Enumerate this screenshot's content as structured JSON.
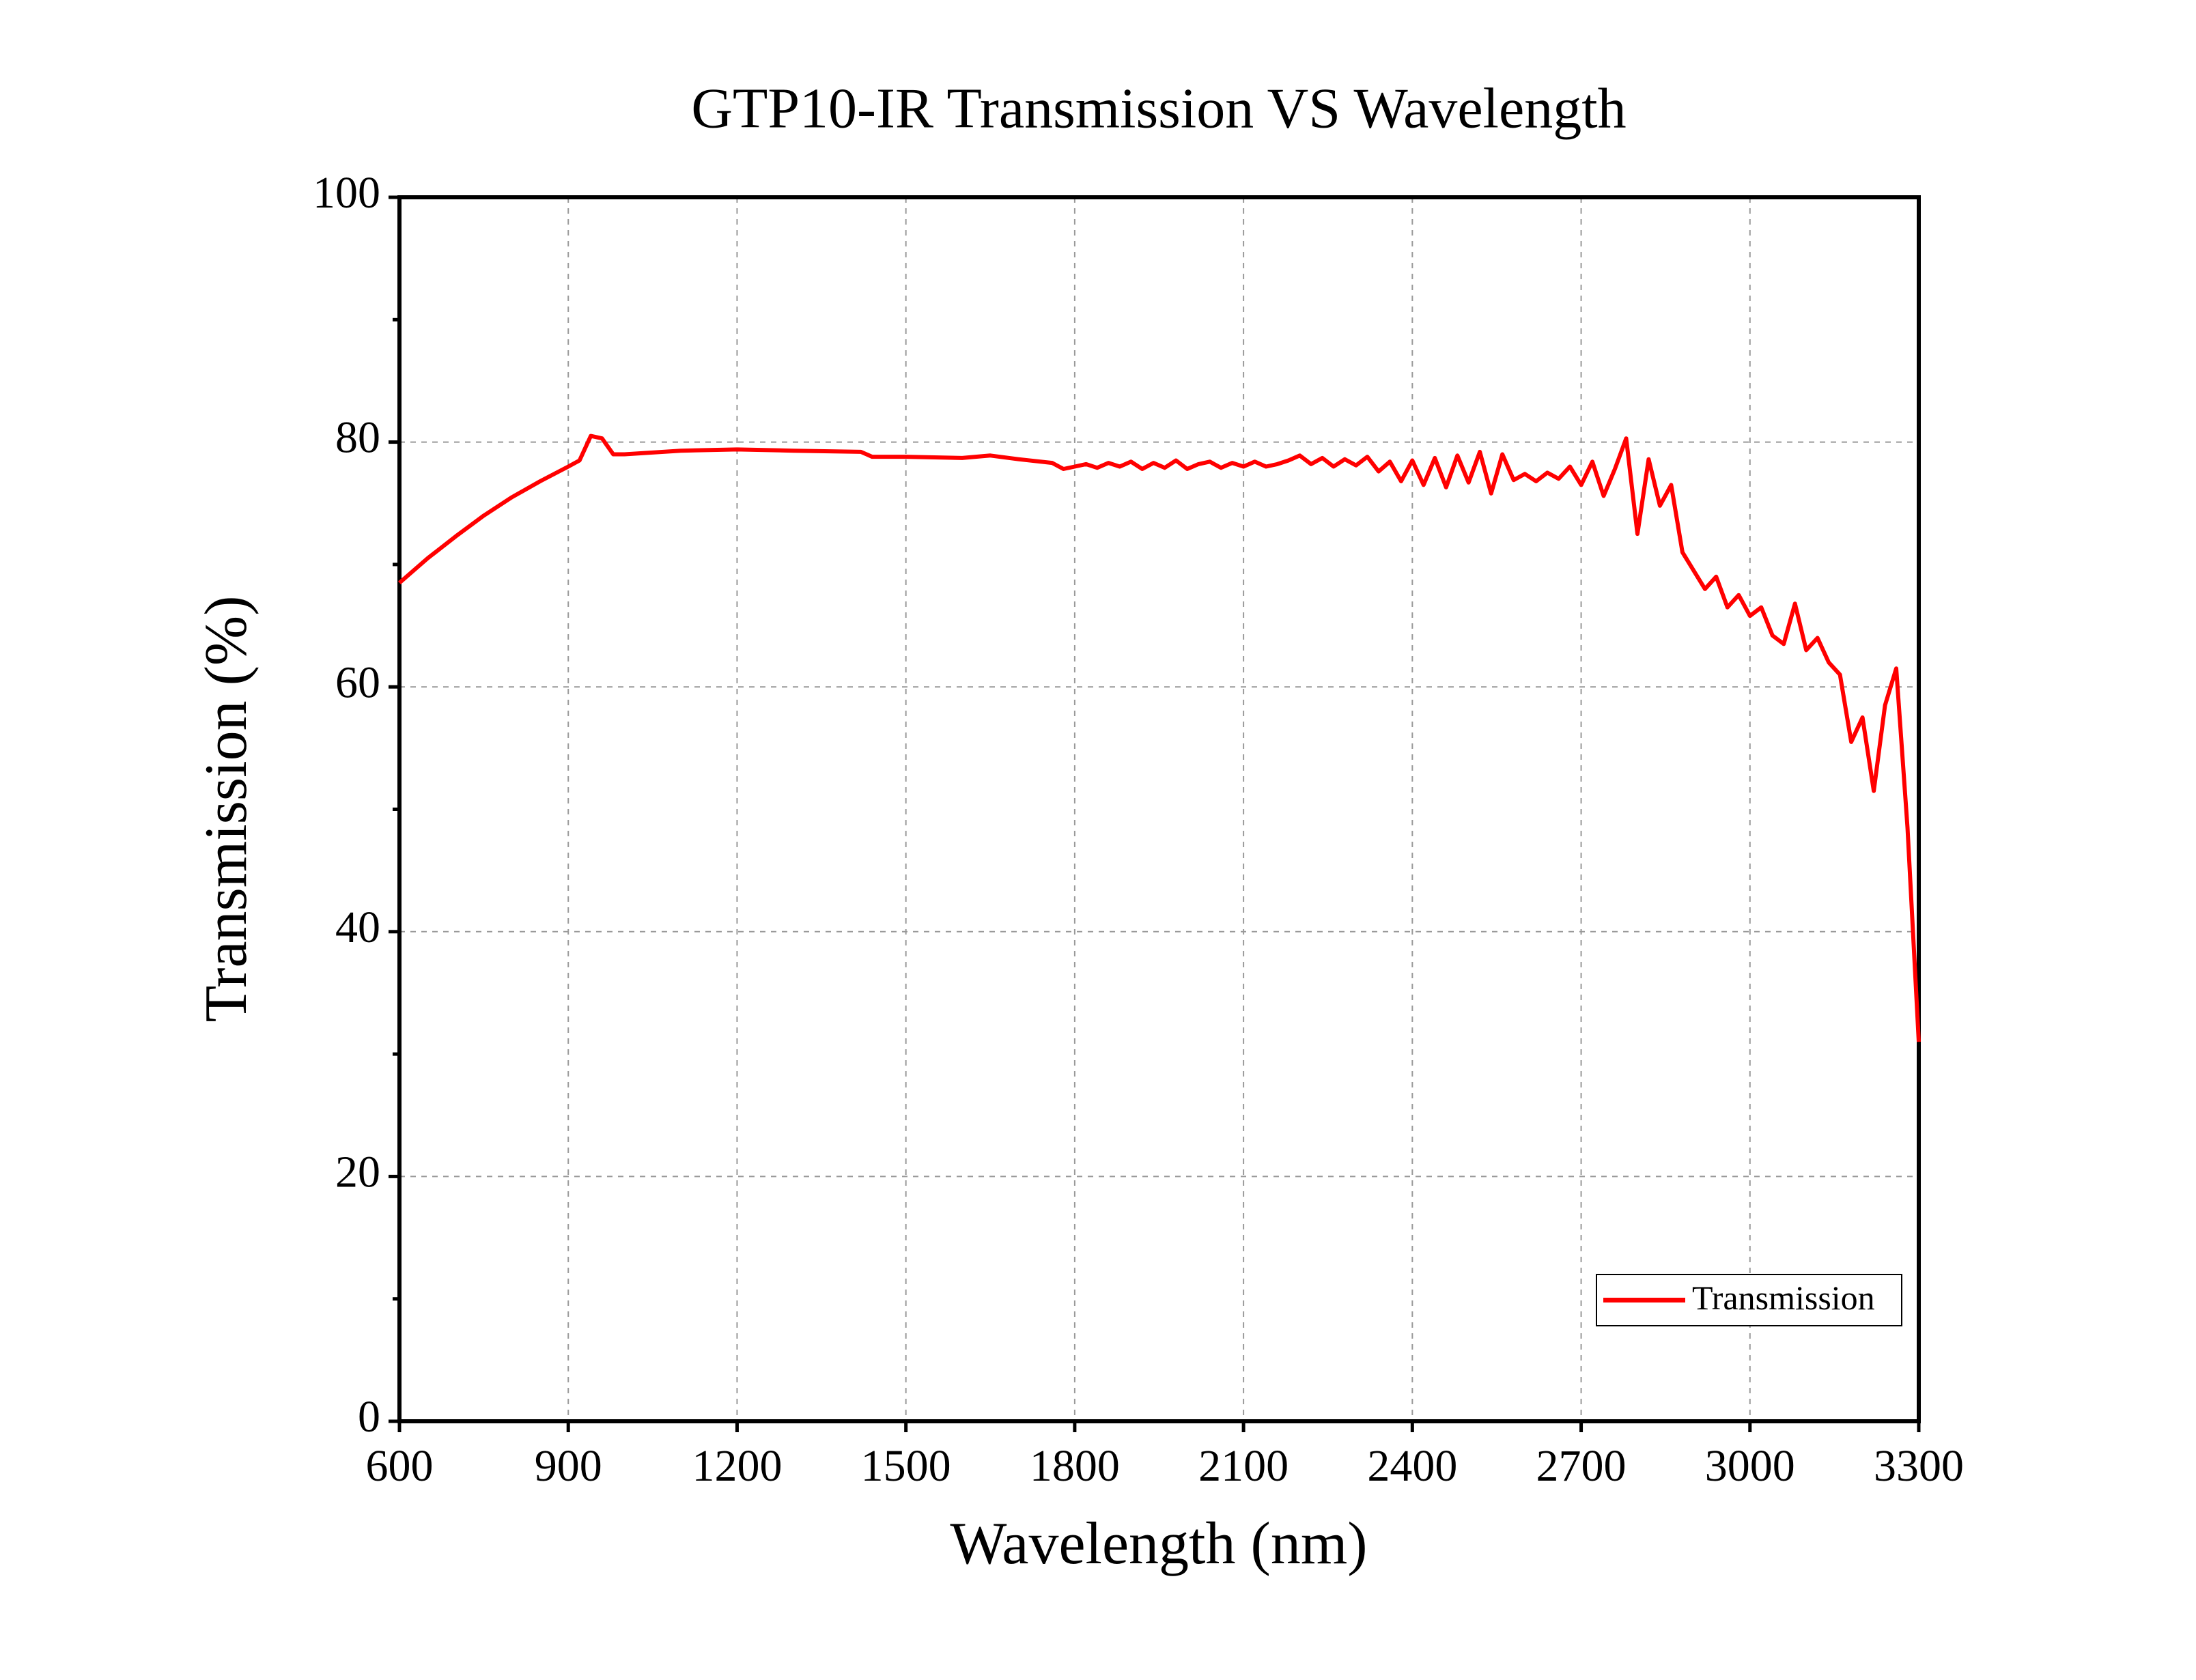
{
  "chart_data": {
    "type": "line",
    "title": "GTP10-IR Transmission VS Wavelength",
    "x_label": "Wavelength (nm)",
    "y_label": "Transmission (%)",
    "xlim": [
      600,
      3300
    ],
    "ylim": [
      0,
      100
    ],
    "xticks": [
      600,
      900,
      1200,
      1500,
      1800,
      2100,
      2400,
      2700,
      3000,
      3300
    ],
    "yticks": [
      0,
      20,
      40,
      60,
      80,
      100
    ],
    "yminorticks": [
      10,
      30,
      50,
      70,
      90
    ],
    "grid": true,
    "legend": "lower right",
    "x": [
      600,
      650,
      700,
      750,
      800,
      850,
      900,
      920,
      940,
      960,
      980,
      1000,
      1100,
      1200,
      1300,
      1420,
      1440,
      1500,
      1600,
      1650,
      1700,
      1760,
      1780,
      1800,
      1820,
      1840,
      1860,
      1880,
      1900,
      1920,
      1940,
      1960,
      1980,
      2000,
      2020,
      2040,
      2060,
      2080,
      2100,
      2120,
      2140,
      2160,
      2180,
      2200,
      2220,
      2240,
      2260,
      2280,
      2300,
      2320,
      2340,
      2360,
      2380,
      2400,
      2420,
      2440,
      2460,
      2480,
      2500,
      2520,
      2540,
      2560,
      2580,
      2600,
      2620,
      2640,
      2660,
      2680,
      2700,
      2720,
      2740,
      2760,
      2780,
      2800,
      2820,
      2840,
      2860,
      2880,
      2900,
      2920,
      2940,
      2960,
      2980,
      3000,
      3020,
      3040,
      3060,
      3080,
      3100,
      3120,
      3140,
      3160,
      3180,
      3200,
      3220,
      3240,
      3260,
      3280,
      3300
    ],
    "series": [
      {
        "name": "Transmission",
        "color": "#ff0000",
        "values": [
          68.5,
          70.5,
          72.3,
          74,
          75.5,
          76.8,
          78,
          78.5,
          80.5,
          80.3,
          79,
          79,
          79.3,
          79.4,
          79.3,
          79.2,
          78.8,
          78.8,
          78.7,
          78.9,
          78.6,
          78.3,
          77.8,
          78.0,
          78.2,
          77.9,
          78.3,
          78.0,
          78.4,
          77.8,
          78.3,
          77.9,
          78.5,
          77.8,
          78.2,
          78.4,
          77.9,
          78.3,
          78.0,
          78.4,
          78.0,
          78.2,
          78.5,
          78.9,
          78.2,
          78.7,
          78.0,
          78.6,
          78.1,
          78.8,
          77.6,
          78.4,
          76.8,
          78.5,
          76.5,
          78.7,
          76.3,
          78.9,
          76.7,
          79.2,
          75.8,
          79.0,
          76.9,
          77.4,
          76.8,
          77.5,
          77.0,
          78.0,
          76.5,
          78.4,
          75.6,
          77.8,
          80.3,
          72.5,
          78.6,
          74.8,
          76.5,
          71.0,
          69.5,
          68.0,
          69.0,
          66.5,
          67.5,
          65.8,
          66.5,
          64.2,
          63.5,
          66.8,
          63.0,
          64.0,
          62.0,
          61.0,
          55.5,
          57.5,
          51.5,
          58.5,
          61.5,
          48.5,
          31.0
        ]
      }
    ]
  }
}
